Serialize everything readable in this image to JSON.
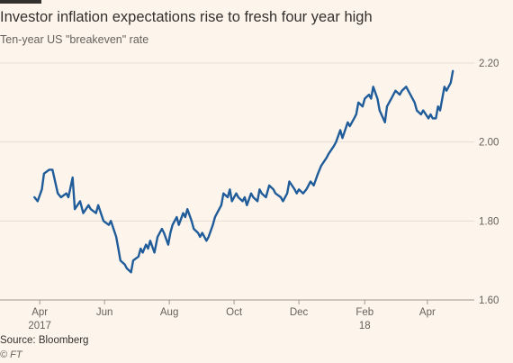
{
  "chart_data": {
    "type": "line",
    "title": "Investor inflation expectations rise to fresh four year high",
    "subtitle": "Ten-year US \"breakeven\" rate",
    "ylim": [
      1.6,
      2.2
    ],
    "y_ticks": [
      "2.20",
      "2.00",
      "1.80",
      "1.60"
    ],
    "y_tick_values": [
      2.2,
      2.0,
      1.8,
      1.6
    ],
    "x_ticks": [
      {
        "label": "Apr",
        "sub": "2017",
        "date": "2017-04-01"
      },
      {
        "label": "Jun",
        "sub": "",
        "date": "2017-06-01"
      },
      {
        "label": "Aug",
        "sub": "",
        "date": "2017-08-01"
      },
      {
        "label": "Oct",
        "sub": "",
        "date": "2017-10-01"
      },
      {
        "label": "Dec",
        "sub": "",
        "date": "2017-12-01"
      },
      {
        "label": "Feb",
        "sub": "18",
        "date": "2018-02-01"
      },
      {
        "label": "Apr",
        "sub": "",
        "date": "2018-04-01"
      }
    ],
    "x_range": [
      "2017-03-20",
      "2018-05-05"
    ],
    "grid": true,
    "line_color": "#1f5c99",
    "series": [
      {
        "points": [
          [
            "2017-03-27",
            1.86
          ],
          [
            "2017-03-30",
            1.85
          ],
          [
            "2017-04-03",
            1.88
          ],
          [
            "2017-04-05",
            1.92
          ],
          [
            "2017-04-10",
            1.93
          ],
          [
            "2017-04-13",
            1.93
          ],
          [
            "2017-04-18",
            1.87
          ],
          [
            "2017-04-21",
            1.86
          ],
          [
            "2017-04-26",
            1.87
          ],
          [
            "2017-04-28",
            1.86
          ],
          [
            "2017-05-02",
            1.91
          ],
          [
            "2017-05-04",
            1.83
          ],
          [
            "2017-05-09",
            1.85
          ],
          [
            "2017-05-12",
            1.82
          ],
          [
            "2017-05-17",
            1.84
          ],
          [
            "2017-05-19",
            1.83
          ],
          [
            "2017-05-24",
            1.82
          ],
          [
            "2017-05-26",
            1.84
          ],
          [
            "2017-05-31",
            1.8
          ],
          [
            "2017-06-05",
            1.79
          ],
          [
            "2017-06-07",
            1.8
          ],
          [
            "2017-06-12",
            1.76
          ],
          [
            "2017-06-14",
            1.73
          ],
          [
            "2017-06-16",
            1.7
          ],
          [
            "2017-06-20",
            1.69
          ],
          [
            "2017-06-22",
            1.68
          ],
          [
            "2017-06-26",
            1.67
          ],
          [
            "2017-06-28",
            1.7
          ],
          [
            "2017-07-03",
            1.71
          ],
          [
            "2017-07-05",
            1.73
          ],
          [
            "2017-07-07",
            1.72
          ],
          [
            "2017-07-10",
            1.74
          ],
          [
            "2017-07-12",
            1.73
          ],
          [
            "2017-07-14",
            1.75
          ],
          [
            "2017-07-18",
            1.72
          ],
          [
            "2017-07-21",
            1.76
          ],
          [
            "2017-07-25",
            1.78
          ],
          [
            "2017-07-27",
            1.77
          ],
          [
            "2017-07-31",
            1.74
          ],
          [
            "2017-08-02",
            1.77
          ],
          [
            "2017-08-04",
            1.79
          ],
          [
            "2017-08-08",
            1.81
          ],
          [
            "2017-08-10",
            1.79
          ],
          [
            "2017-08-14",
            1.82
          ],
          [
            "2017-08-16",
            1.81
          ],
          [
            "2017-08-18",
            1.83
          ],
          [
            "2017-08-22",
            1.8
          ],
          [
            "2017-08-24",
            1.78
          ],
          [
            "2017-08-28",
            1.77
          ],
          [
            "2017-08-30",
            1.76
          ],
          [
            "2017-09-01",
            1.77
          ],
          [
            "2017-09-05",
            1.75
          ],
          [
            "2017-09-07",
            1.76
          ],
          [
            "2017-09-11",
            1.79
          ],
          [
            "2017-09-13",
            1.81
          ],
          [
            "2017-09-15",
            1.82
          ],
          [
            "2017-09-19",
            1.84
          ],
          [
            "2017-09-21",
            1.87
          ],
          [
            "2017-09-25",
            1.86
          ],
          [
            "2017-09-27",
            1.88
          ],
          [
            "2017-09-29",
            1.85
          ],
          [
            "2017-10-03",
            1.87
          ],
          [
            "2017-10-05",
            1.86
          ],
          [
            "2017-10-09",
            1.85
          ],
          [
            "2017-10-11",
            1.86
          ],
          [
            "2017-10-13",
            1.84
          ],
          [
            "2017-10-17",
            1.87
          ],
          [
            "2017-10-19",
            1.86
          ],
          [
            "2017-10-23",
            1.85
          ],
          [
            "2017-10-25",
            1.88
          ],
          [
            "2017-10-27",
            1.87
          ],
          [
            "2017-10-31",
            1.86
          ],
          [
            "2017-11-03",
            1.89
          ],
          [
            "2017-11-07",
            1.88
          ],
          [
            "2017-11-09",
            1.87
          ],
          [
            "2017-11-14",
            1.86
          ],
          [
            "2017-11-16",
            1.85
          ],
          [
            "2017-11-20",
            1.87
          ],
          [
            "2017-11-22",
            1.9
          ],
          [
            "2017-11-27",
            1.88
          ],
          [
            "2017-11-29",
            1.87
          ],
          [
            "2017-12-01",
            1.88
          ],
          [
            "2017-12-05",
            1.87
          ],
          [
            "2017-12-08",
            1.88
          ],
          [
            "2017-12-12",
            1.9
          ],
          [
            "2017-12-15",
            1.89
          ],
          [
            "2017-12-19",
            1.92
          ],
          [
            "2017-12-22",
            1.94
          ],
          [
            "2017-12-27",
            1.96
          ],
          [
            "2017-12-29",
            1.97
          ],
          [
            "2018-01-03",
            1.99
          ],
          [
            "2018-01-05",
            2.0
          ],
          [
            "2018-01-09",
            2.03
          ],
          [
            "2018-01-11",
            2.01
          ],
          [
            "2018-01-16",
            2.05
          ],
          [
            "2018-01-18",
            2.04
          ],
          [
            "2018-01-22",
            2.06
          ],
          [
            "2018-01-24",
            2.07
          ],
          [
            "2018-01-26",
            2.1
          ],
          [
            "2018-01-30",
            2.09
          ],
          [
            "2018-02-01",
            2.11
          ],
          [
            "2018-02-05",
            2.12
          ],
          [
            "2018-02-07",
            2.11
          ],
          [
            "2018-02-09",
            2.14
          ],
          [
            "2018-02-13",
            2.11
          ],
          [
            "2018-02-15",
            2.08
          ],
          [
            "2018-02-20",
            2.05
          ],
          [
            "2018-02-22",
            2.09
          ],
          [
            "2018-02-26",
            2.11
          ],
          [
            "2018-02-28",
            2.12
          ],
          [
            "2018-03-02",
            2.13
          ],
          [
            "2018-03-06",
            2.12
          ],
          [
            "2018-03-08",
            2.13
          ],
          [
            "2018-03-12",
            2.14
          ],
          [
            "2018-03-14",
            2.13
          ],
          [
            "2018-03-16",
            2.12
          ],
          [
            "2018-03-20",
            2.1
          ],
          [
            "2018-03-22",
            2.08
          ],
          [
            "2018-03-26",
            2.07
          ],
          [
            "2018-03-28",
            2.08
          ],
          [
            "2018-04-02",
            2.06
          ],
          [
            "2018-04-04",
            2.07
          ],
          [
            "2018-04-06",
            2.06
          ],
          [
            "2018-04-09",
            2.06
          ],
          [
            "2018-04-11",
            2.09
          ],
          [
            "2018-04-13",
            2.08
          ],
          [
            "2018-04-17",
            2.14
          ],
          [
            "2018-04-19",
            2.13
          ],
          [
            "2018-04-23",
            2.15
          ],
          [
            "2018-04-25",
            2.18
          ]
        ]
      }
    ]
  },
  "footer": {
    "source": "Source: Bloomberg",
    "credit": "© FT"
  }
}
